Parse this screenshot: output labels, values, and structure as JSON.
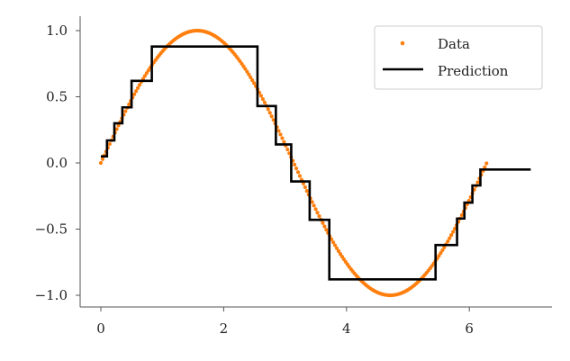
{
  "chart_data": {
    "type": "line",
    "xlim": [
      -0.35,
      7.4
    ],
    "ylim": [
      -1.1,
      1.1
    ],
    "x_ticks": [
      0,
      2,
      4,
      6
    ],
    "x_tick_labels": [
      "0",
      "2",
      "4",
      "6"
    ],
    "y_ticks": [
      1.0,
      0.5,
      0.0,
      -0.5,
      -1.0
    ],
    "y_tick_labels": [
      "1.0",
      "0.5",
      "0.0",
      "−0.5",
      "−1.0"
    ],
    "legend": {
      "position": "top-right",
      "entries": [
        {
          "label": "Data",
          "marker": "dot",
          "color": "#ff7f0e"
        },
        {
          "label": "Prediction",
          "marker": "line",
          "color": "#000000"
        }
      ]
    },
    "series": [
      {
        "name": "Data",
        "kind": "scatter",
        "color": "#ff7f0e",
        "function": "sin(x)",
        "x_range": [
          0,
          6.28
        ],
        "num_points": 220
      },
      {
        "name": "Prediction",
        "kind": "step",
        "color": "#000000",
        "points": [
          [
            0.0,
            0.05
          ],
          [
            0.1,
            0.05
          ],
          [
            0.1,
            0.17
          ],
          [
            0.22,
            0.17
          ],
          [
            0.22,
            0.3
          ],
          [
            0.35,
            0.3
          ],
          [
            0.35,
            0.42
          ],
          [
            0.5,
            0.42
          ],
          [
            0.5,
            0.62
          ],
          [
            0.83,
            0.62
          ],
          [
            0.83,
            0.88
          ],
          [
            2.55,
            0.88
          ],
          [
            2.55,
            0.43
          ],
          [
            2.85,
            0.43
          ],
          [
            2.85,
            0.14
          ],
          [
            3.1,
            0.14
          ],
          [
            3.1,
            -0.14
          ],
          [
            3.4,
            -0.14
          ],
          [
            3.4,
            -0.43
          ],
          [
            3.72,
            -0.43
          ],
          [
            3.72,
            -0.88
          ],
          [
            5.45,
            -0.88
          ],
          [
            5.45,
            -0.62
          ],
          [
            5.8,
            -0.62
          ],
          [
            5.8,
            -0.42
          ],
          [
            5.92,
            -0.42
          ],
          [
            5.92,
            -0.3
          ],
          [
            6.05,
            -0.3
          ],
          [
            6.05,
            -0.17
          ],
          [
            6.18,
            -0.17
          ],
          [
            6.18,
            -0.05
          ],
          [
            7.0,
            -0.05
          ]
        ]
      }
    ]
  }
}
